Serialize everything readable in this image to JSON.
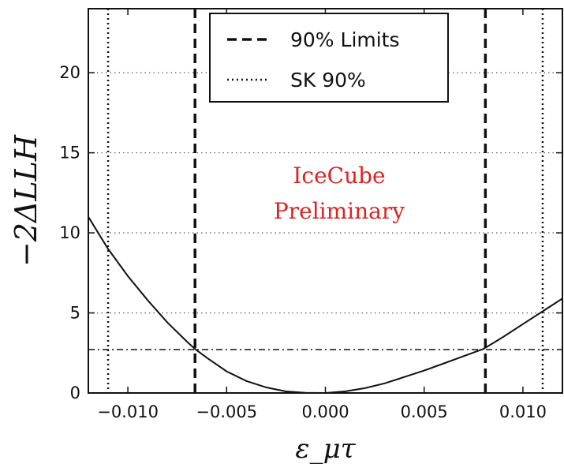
{
  "chart_data": {
    "type": "line",
    "xlabel": "ε_μτ",
    "ylabel": "−2ΔLLH",
    "xlim": [
      -0.012,
      0.012
    ],
    "ylim": [
      0,
      24
    ],
    "x_ticks": [
      -0.01,
      -0.005,
      0.0,
      0.005,
      0.01
    ],
    "x_tick_labels": [
      "−0.010",
      "−0.005",
      "0.000",
      "0.005",
      "0.010"
    ],
    "y_ticks": [
      0,
      5,
      10,
      15,
      20
    ],
    "y_tick_labels": [
      "0",
      "5",
      "10",
      "15",
      "20"
    ],
    "grid": true,
    "grid_axis": "y",
    "legend_position": "top-center",
    "legend": [
      {
        "label": "90% Limits",
        "style": "dashed"
      },
      {
        "label": "SK 90%",
        "style": "dotted"
      }
    ],
    "series": [
      {
        "style": "solid",
        "x": [
          -0.012,
          -0.011,
          -0.01,
          -0.009,
          -0.008,
          -0.007,
          -0.0066,
          -0.006,
          -0.005,
          -0.004,
          -0.003,
          -0.002,
          -0.001,
          0.0,
          0.001,
          0.002,
          0.003,
          0.004,
          0.005,
          0.006,
          0.007,
          0.008,
          0.009,
          0.01,
          0.011,
          0.012
        ],
        "y": [
          11.0,
          9.0,
          7.3,
          5.8,
          4.4,
          3.2,
          2.75,
          2.2,
          1.35,
          0.75,
          0.35,
          0.1,
          0.01,
          0.0,
          0.1,
          0.3,
          0.6,
          1.0,
          1.4,
          1.85,
          2.3,
          2.75,
          3.5,
          4.3,
          5.1,
          5.9
        ]
      }
    ],
    "vlines_90_limits": [
      -0.0066,
      0.0081
    ],
    "vlines_sk_90": [
      -0.011,
      0.011
    ],
    "hline_threshold": 2.71,
    "annotation": [
      "IceCube",
      "Preliminary"
    ],
    "annotation_color": "#dd2222"
  }
}
